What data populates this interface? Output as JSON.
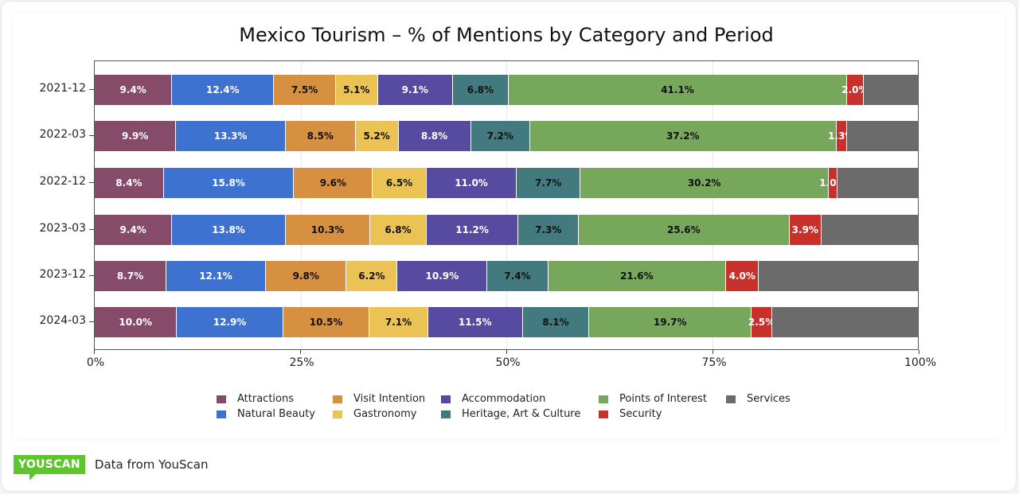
{
  "chart_data": {
    "type": "bar",
    "orientation": "horizontal",
    "stacked": true,
    "title": "Mexico Tourism – % of Mentions by Category and Period",
    "xlabel": "",
    "ylabel": "",
    "xlim": [
      0,
      100
    ],
    "x_ticks": [
      "0%",
      "25%",
      "50%",
      "75%",
      "100%"
    ],
    "grid": "vertical",
    "legend_position": "bottom",
    "categories": [
      "2021-12",
      "2022-03",
      "2022-12",
      "2023-03",
      "2023-12",
      "2024-03"
    ],
    "series": [
      {
        "name": "Attractions",
        "color": "#874b6a",
        "label_color": "#ffffff",
        "values": [
          9.4,
          9.9,
          8.4,
          9.4,
          8.7,
          10.0
        ]
      },
      {
        "name": "Natural Beauty",
        "color": "#3e72d1",
        "label_color": "#ffffff",
        "values": [
          12.4,
          13.3,
          15.8,
          13.8,
          12.1,
          12.9
        ]
      },
      {
        "name": "Visit Intention",
        "color": "#d78f40",
        "label_color": "#111111",
        "values": [
          7.5,
          8.5,
          9.6,
          10.3,
          9.8,
          10.5
        ]
      },
      {
        "name": "Gastronomy",
        "color": "#ebc254",
        "label_color": "#111111",
        "values": [
          5.1,
          5.2,
          6.5,
          6.8,
          6.2,
          7.1
        ]
      },
      {
        "name": "Accommodation",
        "color": "#564aa1",
        "label_color": "#ffffff",
        "values": [
          9.1,
          8.8,
          11.0,
          11.2,
          10.9,
          11.5
        ]
      },
      {
        "name": "Heritage, Art & Culture",
        "color": "#437a80",
        "label_color": "#111111",
        "values": [
          6.8,
          7.2,
          7.7,
          7.3,
          7.4,
          8.1
        ]
      },
      {
        "name": "Points of Interest",
        "color": "#77a75b",
        "label_color": "#111111",
        "values": [
          41.1,
          37.2,
          30.2,
          25.6,
          21.6,
          19.7
        ]
      },
      {
        "name": "Security",
        "color": "#c8302b",
        "label_color": "#ffffff",
        "values": [
          2.0,
          1.3,
          1.0,
          3.9,
          4.0,
          2.5
        ]
      },
      {
        "name": "Services",
        "color": "#6b6b6b",
        "label_color": "#ffffff",
        "values": [
          6.6,
          8.6,
          9.8,
          11.7,
          19.3,
          17.7
        ],
        "labels_shown": false
      }
    ]
  },
  "legend": {
    "items": [
      {
        "label": "Attractions",
        "color": "#874b6a"
      },
      {
        "label": "Natural Beauty",
        "color": "#3e72d1"
      },
      {
        "label": "Visit Intention",
        "color": "#d78f40"
      },
      {
        "label": "Gastronomy",
        "color": "#ebc254"
      },
      {
        "label": "Accommodation",
        "color": "#564aa1"
      },
      {
        "label": "Heritage, Art & Culture",
        "color": "#437a80"
      },
      {
        "label": "Points of Interest",
        "color": "#77a75b"
      },
      {
        "label": "Security",
        "color": "#c8302b"
      },
      {
        "label": "Services",
        "color": "#6b6b6b"
      }
    ]
  },
  "footer": {
    "logo_text": "YOUSCAN",
    "logo_color": "#5fc52e",
    "source_text": "Data from YouScan"
  }
}
